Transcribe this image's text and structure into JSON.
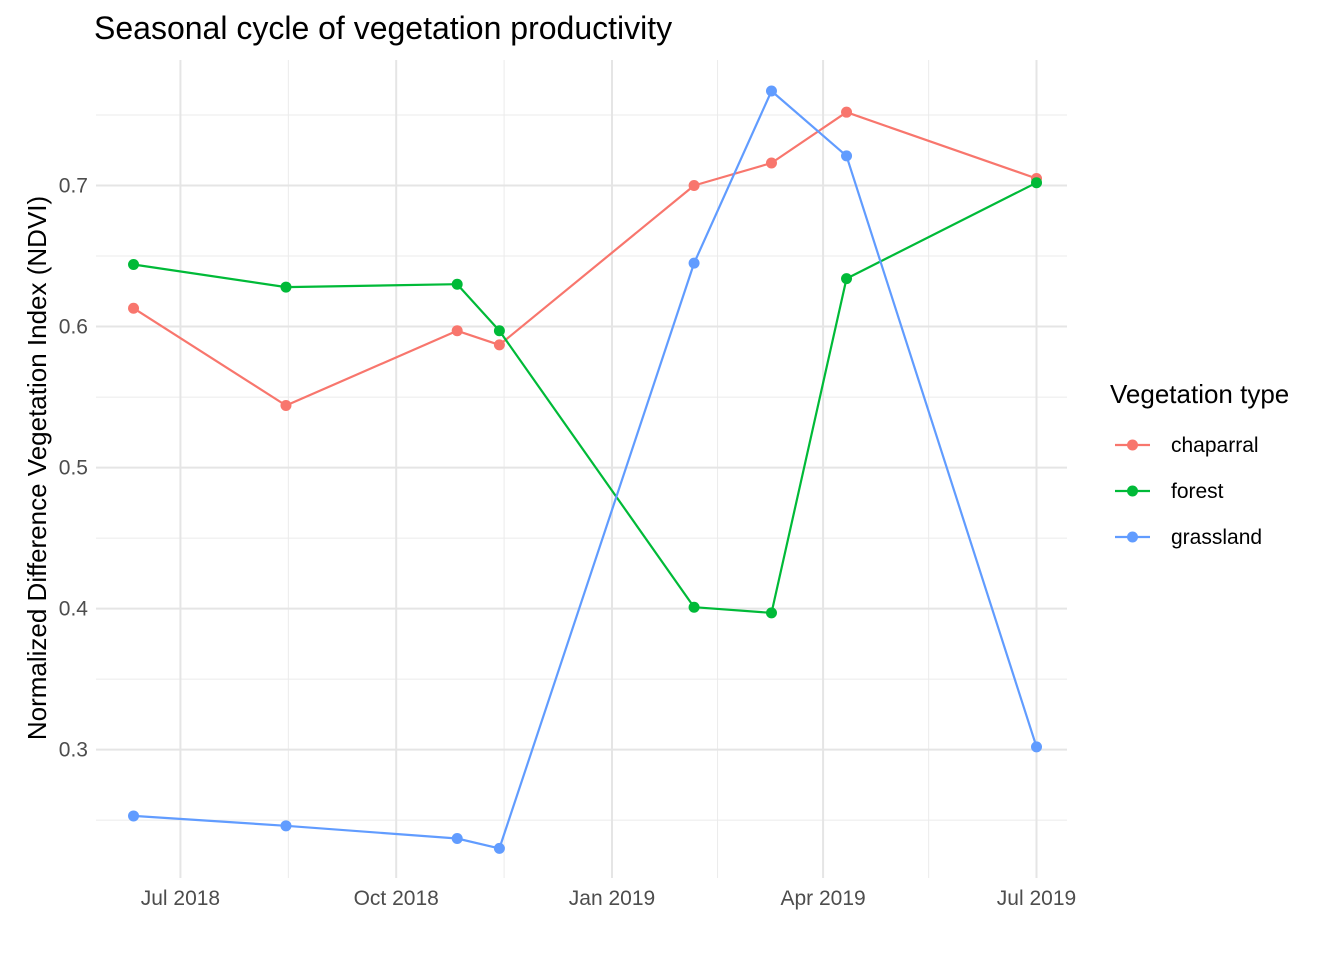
{
  "chart_data": {
    "type": "line",
    "title": "Seasonal cycle of vegetation productivity",
    "xlabel": "",
    "ylabel": "Normalized Difference Vegetation Index (NDVI)",
    "ylim": [
      0.209,
      0.789
    ],
    "y_ticks": [
      0.3,
      0.4,
      0.5,
      0.6,
      0.7
    ],
    "y_tick_labels": [
      "0.3",
      "0.4",
      "0.5",
      "0.6",
      "0.7"
    ],
    "x_range": [
      "2018-05-26",
      "2019-07-14"
    ],
    "x_ticks": [
      "2018-07-01",
      "2018-10-01",
      "2019-01-01",
      "2019-04-01",
      "2019-07-01"
    ],
    "x_tick_labels": [
      "Jul 2018",
      "Oct 2018",
      "Jan 2019",
      "Apr 2019",
      "Jul 2019"
    ],
    "x_minor_ticks": [
      "2018-08-16",
      "2018-11-16",
      "2019-02-15",
      "2019-05-16"
    ],
    "grid": true,
    "legend_title": "Vegetation type",
    "legend_position": "right",
    "series": [
      {
        "name": "chaparral",
        "color": "#F8766D",
        "x": [
          "2018-06-11",
          "2018-08-15",
          "2018-10-27",
          "2018-11-14",
          "2019-02-05",
          "2019-03-10",
          "2019-04-11",
          "2019-07-01"
        ],
        "y": [
          0.613,
          0.544,
          0.597,
          0.587,
          0.7,
          0.716,
          0.752,
          0.705
        ]
      },
      {
        "name": "forest",
        "color": "#00BA38",
        "x": [
          "2018-06-11",
          "2018-08-15",
          "2018-10-27",
          "2018-11-14",
          "2019-02-05",
          "2019-03-10",
          "2019-04-11",
          "2019-07-01"
        ],
        "y": [
          0.644,
          0.628,
          0.63,
          0.597,
          0.401,
          0.397,
          0.634,
          0.702
        ]
      },
      {
        "name": "grassland",
        "color": "#619CFF",
        "x": [
          "2018-06-11",
          "2018-08-15",
          "2018-10-27",
          "2018-11-14",
          "2019-02-05",
          "2019-03-10",
          "2019-04-11",
          "2019-07-01"
        ],
        "y": [
          0.253,
          0.246,
          0.237,
          0.23,
          0.645,
          0.767,
          0.721,
          0.302
        ]
      }
    ]
  }
}
